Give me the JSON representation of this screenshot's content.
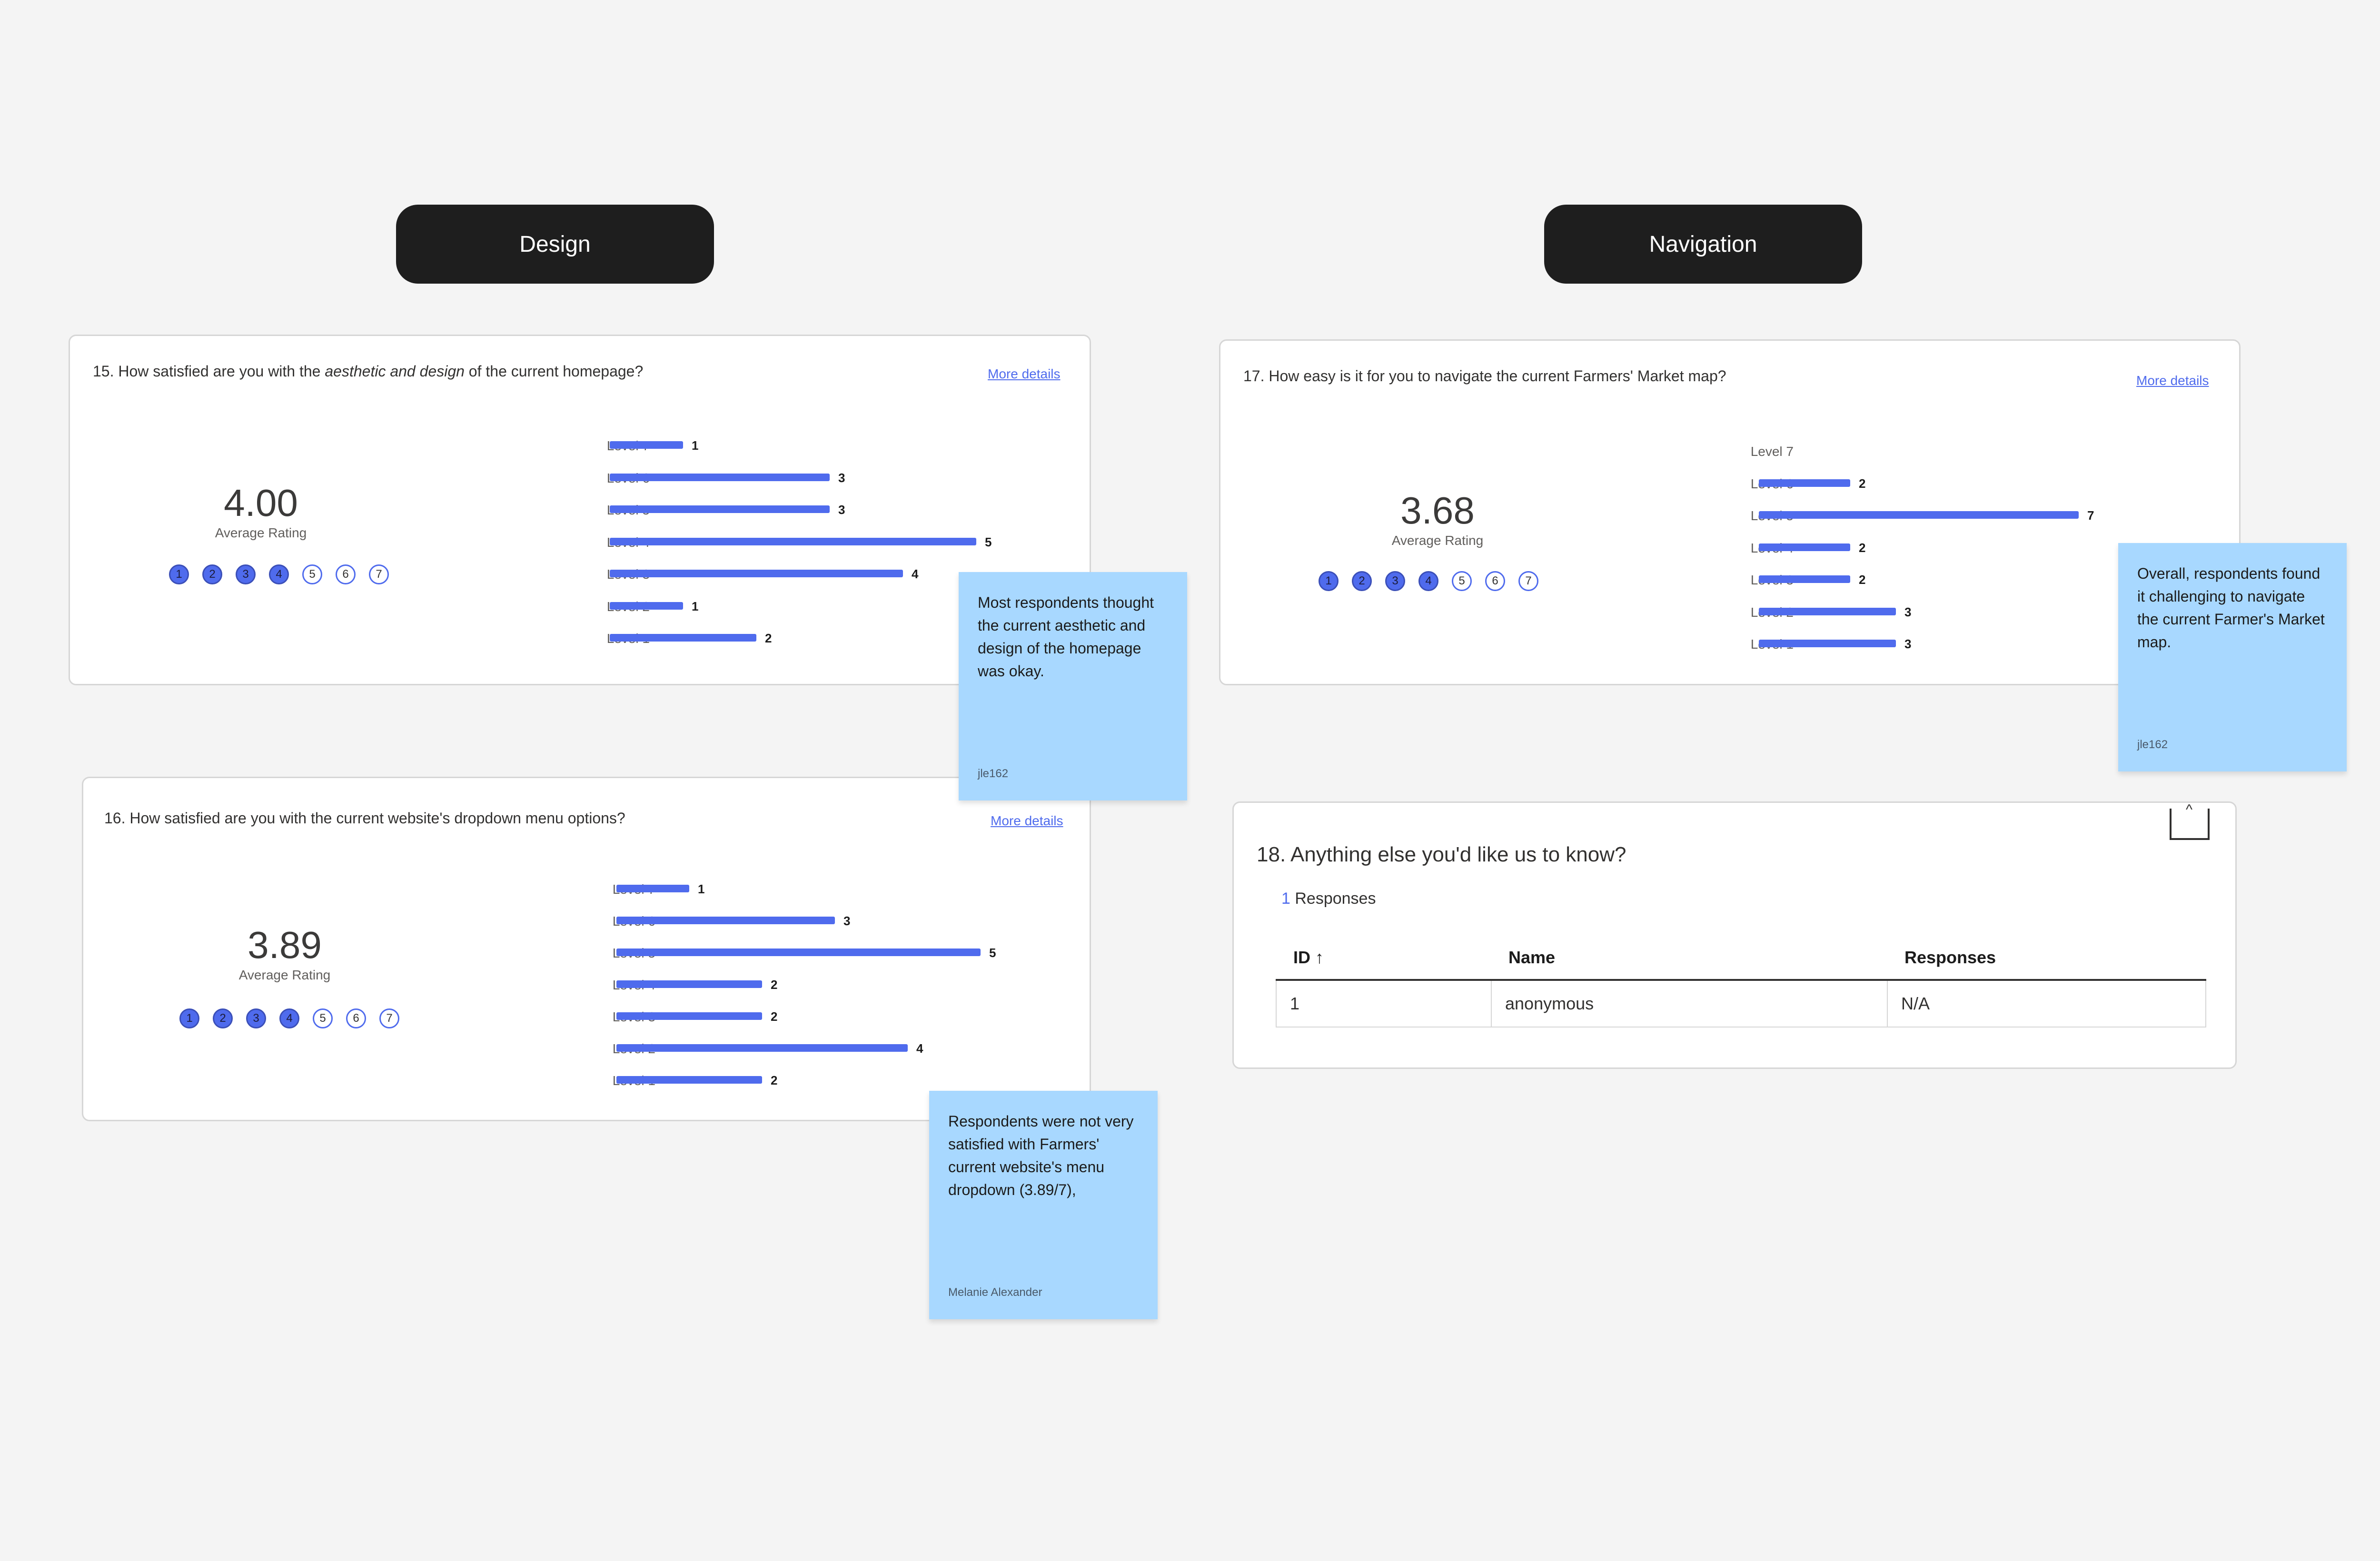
{
  "sections": {
    "design": "Design",
    "navigation": "Navigation"
  },
  "more_details": "More details",
  "average_label": "Average Rating",
  "q15": {
    "title_pre": "15. How satisfied are you with the ",
    "title_em": "aesthetic and design",
    "title_post": " of the current homepage?",
    "average": "4.00",
    "filled": 4,
    "levels": [
      {
        "label": "Level 7",
        "value": 1
      },
      {
        "label": "Level 6",
        "value": 3
      },
      {
        "label": "Level 5",
        "value": 3
      },
      {
        "label": "Level 4",
        "value": 5
      },
      {
        "label": "Level 3",
        "value": 4
      },
      {
        "label": "Level 2",
        "value": 1
      },
      {
        "label": "Level 1",
        "value": 2
      }
    ]
  },
  "q16": {
    "title": "16. How satisfied are you with the current website's dropdown menu options?",
    "average": "3.89",
    "filled": 4,
    "levels": [
      {
        "label": "Level 7",
        "value": 1
      },
      {
        "label": "Level 6",
        "value": 3
      },
      {
        "label": "Level 5",
        "value": 5
      },
      {
        "label": "Level 4",
        "value": 2
      },
      {
        "label": "Level 3",
        "value": 2
      },
      {
        "label": "Level 2",
        "value": 4
      },
      {
        "label": "Level 1",
        "value": 2
      }
    ]
  },
  "q17": {
    "title": "17. How easy is it for you to navigate the current Farmers' Market map?",
    "average": "3.68",
    "filled": 4,
    "levels": [
      {
        "label": "Level 7",
        "value": null
      },
      {
        "label": "Level 6",
        "value": 2
      },
      {
        "label": "Level 5",
        "value": 7
      },
      {
        "label": "Level 4",
        "value": 2
      },
      {
        "label": "Level 3",
        "value": 2
      },
      {
        "label": "Level 2",
        "value": 3
      },
      {
        "label": "Level 1",
        "value": 3
      }
    ]
  },
  "q18": {
    "title": "18. Anything else you'd like us to know?",
    "response_count": "1",
    "response_label": " Responses",
    "headers": {
      "id": "ID ↑",
      "name": "Name",
      "responses": "Responses"
    },
    "rows": [
      {
        "id": "1",
        "name": "anonymous",
        "responses": "N/A"
      }
    ]
  },
  "stickies": {
    "s1": {
      "text": "Most respondents thought the current aesthetic and design of the homepage was okay.",
      "author": "jle162"
    },
    "s2": {
      "text": "Respondents were not very satisfied with Farmers' current website's menu dropdown (3.89/7),",
      "author": "Melanie Alexander"
    },
    "s3": {
      "text": "Overall, respondents found it challenging to navigate the current Farmer's Market map.",
      "author": "jle162"
    }
  },
  "colors": {
    "bar": "#4f6bed",
    "sticky": "#a8d8ff",
    "pill": "#1e1e1e"
  }
}
